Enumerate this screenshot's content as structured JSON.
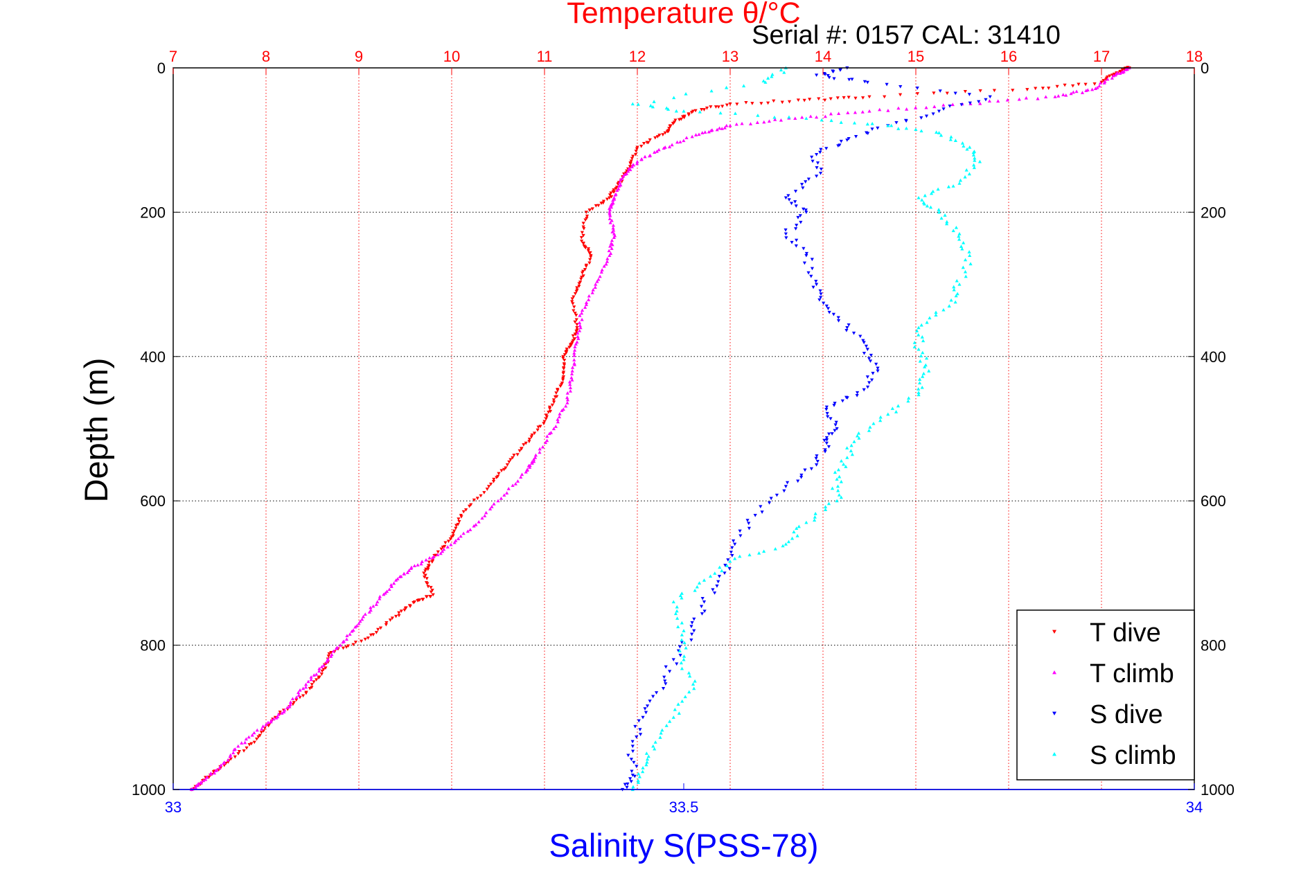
{
  "chart_data": {
    "type": "scatter",
    "title": "Temperature θ/°C",
    "subtitle": "Serial #: 0157  CAL: 31410",
    "ylabel": "Depth (m)",
    "xlabel_bottom": "Salinity S(PSS-78)",
    "y_axis": {
      "range": [
        0,
        1000
      ],
      "reversed": true,
      "ticks": [
        0,
        200,
        400,
        600,
        800,
        1000
      ]
    },
    "x_axis_top": {
      "name": "Temperature",
      "range": [
        7,
        18
      ],
      "ticks": [
        7,
        8,
        9,
        10,
        11,
        12,
        13,
        14,
        15,
        16,
        17,
        18
      ],
      "color": "#ff0000"
    },
    "x_axis_bottom": {
      "name": "Salinity",
      "range": [
        33,
        34
      ],
      "ticks": [
        33,
        33.5,
        34
      ],
      "color": "#0000ff"
    },
    "grid": true,
    "legend_position": "bottom-right",
    "series": [
      {
        "name": "T dive",
        "axis": "temperature",
        "color": "#ff0000",
        "marker": "triangle-down",
        "points": [
          [
            17.3,
            0
          ],
          [
            17.2,
            5
          ],
          [
            17.0,
            20
          ],
          [
            16.2,
            30
          ],
          [
            14.5,
            40
          ],
          [
            13.8,
            45
          ],
          [
            13.0,
            50
          ],
          [
            12.6,
            60
          ],
          [
            12.4,
            75
          ],
          [
            12.3,
            90
          ],
          [
            12.0,
            110
          ],
          [
            11.9,
            140
          ],
          [
            11.8,
            160
          ],
          [
            11.7,
            180
          ],
          [
            11.45,
            200
          ],
          [
            11.4,
            240
          ],
          [
            11.5,
            260
          ],
          [
            11.4,
            290
          ],
          [
            11.3,
            320
          ],
          [
            11.35,
            360
          ],
          [
            11.3,
            380
          ],
          [
            11.2,
            400
          ],
          [
            11.2,
            430
          ],
          [
            11.1,
            460
          ],
          [
            11.0,
            490
          ],
          [
            10.8,
            520
          ],
          [
            10.6,
            550
          ],
          [
            10.4,
            580
          ],
          [
            10.1,
            620
          ],
          [
            10.0,
            650
          ],
          [
            9.8,
            680
          ],
          [
            9.7,
            700
          ],
          [
            9.8,
            730
          ],
          [
            9.6,
            740
          ],
          [
            9.4,
            760
          ],
          [
            9.1,
            790
          ],
          [
            8.7,
            810
          ],
          [
            8.6,
            840
          ],
          [
            8.4,
            870
          ],
          [
            8.1,
            900
          ],
          [
            7.9,
            930
          ],
          [
            7.6,
            960
          ],
          [
            7.4,
            980
          ],
          [
            7.2,
            1000
          ]
        ]
      },
      {
        "name": "T climb",
        "axis": "temperature",
        "color": "#ff00ff",
        "marker": "triangle-up",
        "points": [
          [
            17.3,
            0
          ],
          [
            17.15,
            10
          ],
          [
            16.9,
            30
          ],
          [
            16.5,
            40
          ],
          [
            15.5,
            50
          ],
          [
            14.5,
            60
          ],
          [
            13.7,
            70
          ],
          [
            13.0,
            80
          ],
          [
            12.7,
            90
          ],
          [
            12.3,
            110
          ],
          [
            12.0,
            130
          ],
          [
            11.85,
            150
          ],
          [
            11.75,
            180
          ],
          [
            11.7,
            200
          ],
          [
            11.75,
            230
          ],
          [
            11.7,
            260
          ],
          [
            11.55,
            300
          ],
          [
            11.4,
            340
          ],
          [
            11.35,
            380
          ],
          [
            11.3,
            420
          ],
          [
            11.25,
            460
          ],
          [
            11.1,
            500
          ],
          [
            10.9,
            540
          ],
          [
            10.8,
            560
          ],
          [
            10.5,
            600
          ],
          [
            10.2,
            640
          ],
          [
            9.9,
            670
          ],
          [
            9.6,
            690
          ],
          [
            9.4,
            710
          ],
          [
            9.2,
            740
          ],
          [
            9.0,
            770
          ],
          [
            8.8,
            800
          ],
          [
            8.6,
            830
          ],
          [
            8.4,
            860
          ],
          [
            8.2,
            890
          ],
          [
            8.0,
            910
          ],
          [
            7.7,
            940
          ],
          [
            7.5,
            970
          ],
          [
            7.3,
            990
          ],
          [
            7.2,
            1000
          ]
        ]
      },
      {
        "name": "S dive",
        "axis": "salinity",
        "color": "#0000ff",
        "marker": "triangle-down",
        "points": [
          [
            33.66,
            0
          ],
          [
            33.63,
            10
          ],
          [
            33.68,
            20
          ],
          [
            33.8,
            40
          ],
          [
            33.75,
            60
          ],
          [
            33.7,
            80
          ],
          [
            33.66,
            100
          ],
          [
            33.63,
            120
          ],
          [
            33.63,
            150
          ],
          [
            33.6,
            180
          ],
          [
            33.62,
            200
          ],
          [
            33.6,
            230
          ],
          [
            33.62,
            260
          ],
          [
            33.63,
            300
          ],
          [
            33.64,
            330
          ],
          [
            33.66,
            360
          ],
          [
            33.68,
            390
          ],
          [
            33.69,
            420
          ],
          [
            33.67,
            450
          ],
          [
            33.64,
            470
          ],
          [
            33.65,
            500
          ],
          [
            33.64,
            520
          ],
          [
            33.63,
            550
          ],
          [
            33.6,
            580
          ],
          [
            33.57,
            620
          ],
          [
            33.55,
            660
          ],
          [
            33.54,
            700
          ],
          [
            33.52,
            740
          ],
          [
            33.51,
            780
          ],
          [
            33.49,
            820
          ],
          [
            33.48,
            860
          ],
          [
            33.46,
            900
          ],
          [
            33.45,
            940
          ],
          [
            33.45,
            980
          ],
          [
            33.44,
            1000
          ]
        ]
      },
      {
        "name": "S climb",
        "axis": "salinity",
        "color": "#00ffff",
        "marker": "triangle-up",
        "points": [
          [
            33.6,
            0
          ],
          [
            33.58,
            20
          ],
          [
            33.45,
            50
          ],
          [
            33.5,
            60
          ],
          [
            33.62,
            70
          ],
          [
            33.7,
            80
          ],
          [
            33.75,
            90
          ],
          [
            33.78,
            110
          ],
          [
            33.79,
            130
          ],
          [
            33.77,
            160
          ],
          [
            33.73,
            180
          ],
          [
            33.75,
            200
          ],
          [
            33.77,
            230
          ],
          [
            33.78,
            260
          ],
          [
            33.77,
            300
          ],
          [
            33.76,
            330
          ],
          [
            33.73,
            360
          ],
          [
            33.73,
            390
          ],
          [
            33.74,
            420
          ],
          [
            33.73,
            450
          ],
          [
            33.7,
            480
          ],
          [
            33.67,
            510
          ],
          [
            33.66,
            540
          ],
          [
            33.65,
            570
          ],
          [
            33.65,
            600
          ],
          [
            33.62,
            630
          ],
          [
            33.6,
            660
          ],
          [
            33.55,
            680
          ],
          [
            33.52,
            710
          ],
          [
            33.49,
            740
          ],
          [
            33.5,
            780
          ],
          [
            33.5,
            820
          ],
          [
            33.51,
            860
          ],
          [
            33.49,
            900
          ],
          [
            33.47,
            940
          ],
          [
            33.46,
            970
          ],
          [
            33.45,
            1000
          ]
        ]
      }
    ]
  }
}
